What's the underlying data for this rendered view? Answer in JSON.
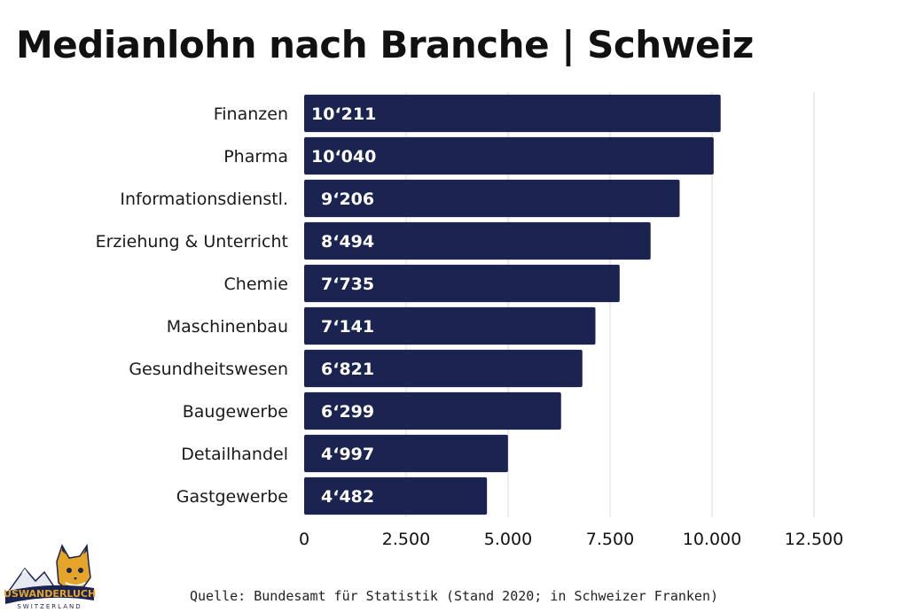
{
  "title": "Medianlohn nach Branche | Schweiz",
  "source": "Quelle: Bundesamt für Statistik (Stand 2020; in Schweizer Franken)",
  "logo": {
    "text_top": "AUSWANDERLUCHS",
    "text_bottom": "SWITZERLAND"
  },
  "colors": {
    "bar": "#1b2350",
    "grid": "#d9d9d9",
    "text": "#111111"
  },
  "chart_data": {
    "type": "bar",
    "orientation": "horizontal",
    "title": "Medianlohn nach Branche | Schweiz",
    "categories": [
      "Finanzen",
      "Pharma",
      "Informationsdienstl.",
      "Erziehung & Unterricht",
      "Chemie",
      "Maschinenbau",
      "Gesundheitswesen",
      "Baugewerbe",
      "Detailhandel",
      "Gastgewerbe"
    ],
    "values": [
      10211,
      10040,
      9206,
      8494,
      7735,
      7141,
      6821,
      6299,
      4997,
      4482
    ],
    "value_labels": [
      "10‘211",
      "10‘040",
      "9‘206",
      "8‘494",
      "7‘735",
      "7‘141",
      "6‘821",
      "6‘299",
      "4‘997",
      "4‘482"
    ],
    "xlim": [
      0,
      12500
    ],
    "xticks": [
      0,
      2500,
      5000,
      7500,
      10000,
      12500
    ],
    "xtick_labels": [
      "0",
      "2.500",
      "5.000",
      "7.500",
      "10.000",
      "12.500"
    ],
    "grid": "vertical",
    "legend": "none"
  }
}
